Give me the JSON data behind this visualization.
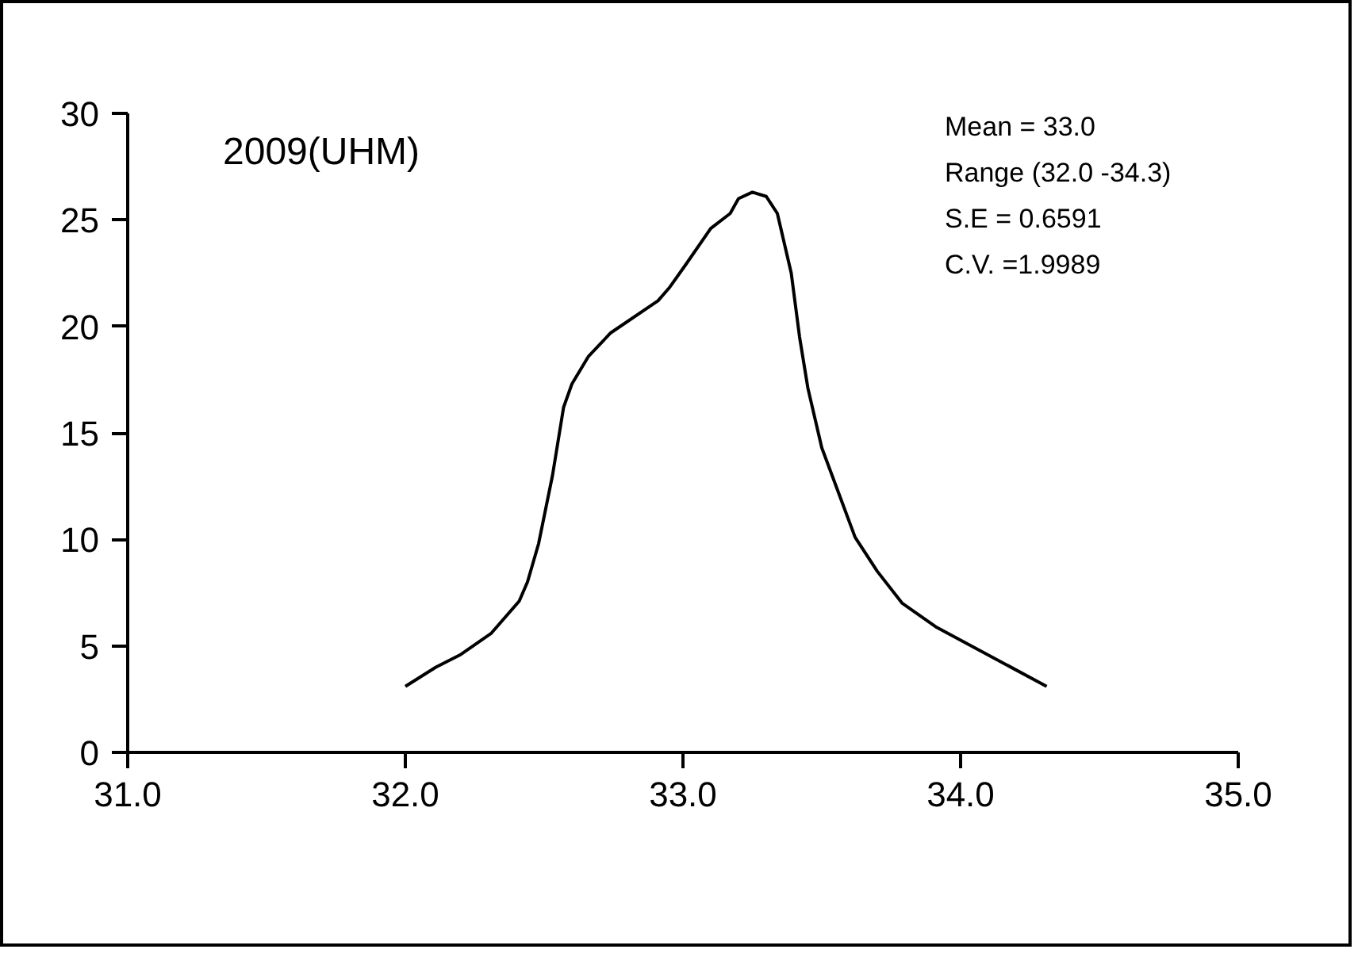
{
  "chart_data": {
    "type": "line",
    "title": "2009(UHM)",
    "x": [
      32.0,
      32.11,
      32.2,
      32.31,
      32.41,
      32.44,
      32.48,
      32.53,
      32.57,
      32.6,
      32.66,
      32.74,
      32.91,
      32.95,
      33.01,
      33.1,
      33.17,
      33.2,
      33.25,
      33.3,
      33.34,
      33.39,
      33.42,
      33.45,
      33.5,
      33.58,
      33.62,
      33.7,
      33.79,
      33.91,
      34.31
    ],
    "series": [
      {
        "color": "#000000",
        "values": [
          3.1,
          4.0,
          4.6,
          5.6,
          7.1,
          8.0,
          9.8,
          13.0,
          16.2,
          17.3,
          18.6,
          19.7,
          21.2,
          21.8,
          22.9,
          24.6,
          25.3,
          26.0,
          26.3,
          26.1,
          25.3,
          22.5,
          19.5,
          17.1,
          14.3,
          11.5,
          10.1,
          8.5,
          7.0,
          5.9,
          3.1
        ]
      }
    ],
    "xlim": [
      31,
      35
    ],
    "xticks": [
      {
        "value": 31,
        "label": "31.0"
      },
      {
        "value": 32,
        "label": "32.0"
      },
      {
        "value": 33,
        "label": "33.0"
      },
      {
        "value": 34,
        "label": "34.0"
      },
      {
        "value": 35,
        "label": "35.0"
      }
    ],
    "ylim": [
      0,
      30
    ],
    "yticks": [
      0,
      5,
      10,
      15,
      20,
      25,
      30
    ],
    "grid": false,
    "marker": "none",
    "line_style": "solid",
    "annotations": [
      "Mean  = 33.0",
      "Range (32.0 -34.3)",
      "S.E     = 0.6591",
      "C.V.   =1.9989"
    ]
  }
}
